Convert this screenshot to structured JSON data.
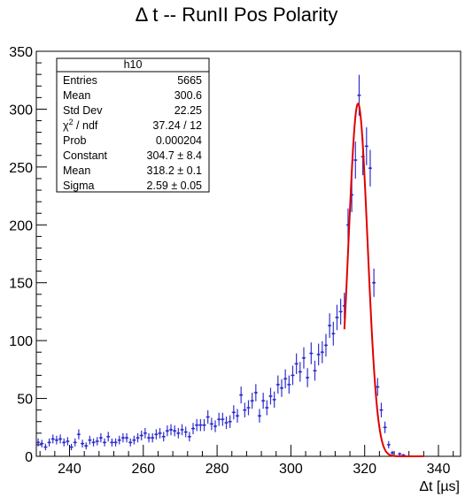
{
  "chart_data": {
    "type": "histogram",
    "title": "Δ t -- RunII Pos Polarity",
    "xlabel": "Δt [µs]",
    "ylabel": "",
    "xlim": [
      231,
      346
    ],
    "ylim": [
      0,
      350
    ],
    "x_ticks": [
      240,
      260,
      280,
      300,
      320,
      340
    ],
    "y_ticks": [
      0,
      50,
      100,
      150,
      200,
      250,
      300,
      350
    ],
    "grid": false,
    "legend": "none",
    "colors": {
      "points": "#3030d0",
      "fit": "#e00000",
      "axis": "#000000"
    },
    "bin_width": 1,
    "series": [
      {
        "kind": "points-with-errors",
        "x": [
          231.5,
          232.5,
          233.5,
          234.5,
          235.5,
          236.5,
          237.5,
          238.5,
          239.5,
          240.5,
          241.5,
          242.5,
          243.5,
          244.5,
          245.5,
          246.5,
          247.5,
          248.5,
          249.5,
          250.5,
          251.5,
          252.5,
          253.5,
          254.5,
          255.5,
          256.5,
          257.5,
          258.5,
          259.5,
          260.5,
          261.5,
          262.5,
          263.5,
          264.5,
          265.5,
          266.5,
          267.5,
          268.5,
          269.5,
          270.5,
          271.5,
          272.5,
          273.5,
          274.5,
          275.5,
          276.5,
          277.5,
          278.5,
          279.5,
          280.5,
          281.5,
          282.5,
          283.5,
          284.5,
          285.5,
          286.5,
          287.5,
          288.5,
          289.5,
          290.5,
          291.5,
          292.5,
          293.5,
          294.5,
          295.5,
          296.5,
          297.5,
          298.5,
          299.5,
          300.5,
          301.5,
          302.5,
          303.5,
          304.5,
          305.5,
          306.5,
          307.5,
          308.5,
          309.5,
          310.5,
          311.5,
          312.5,
          313.5,
          314.5,
          315.5,
          316.5,
          317.5,
          318.5,
          319.5,
          320.5,
          321.5,
          322.5,
          323.5,
          324.5,
          325.5,
          326.5,
          327.5,
          328.5,
          329.5,
          330.5
        ],
        "y": [
          12,
          11,
          8,
          12,
          15,
          14,
          15,
          12,
          13,
          8,
          12,
          19,
          11,
          9,
          14,
          12,
          13,
          16,
          12,
          17,
          12,
          12,
          14,
          16,
          16,
          12,
          14,
          16,
          18,
          20,
          16,
          16,
          19,
          20,
          17,
          22,
          23,
          22,
          20,
          23,
          21,
          17,
          24,
          27,
          27,
          27,
          34,
          28,
          26,
          32,
          32,
          29,
          30,
          38,
          35,
          53,
          40,
          42,
          48,
          55,
          35,
          48,
          42,
          52,
          49,
          62,
          59,
          67,
          62,
          70,
          80,
          73,
          85,
          68,
          89,
          74,
          88,
          90,
          96,
          113,
          106,
          120,
          125,
          130,
          200,
          226,
          256,
          312,
          259,
          268,
          249,
          150,
          60,
          40,
          25,
          10,
          3,
          0,
          2,
          1
        ]
      },
      {
        "kind": "gaussian-fit",
        "constant": 304.7,
        "mean": 318.2,
        "sigma": 2.59,
        "x_range": [
          314.5,
          336
        ]
      }
    ]
  },
  "stats_box": {
    "name": "h10",
    "rows": [
      {
        "label": "Entries",
        "value": "5665"
      },
      {
        "label": "Mean",
        "value": "300.6"
      },
      {
        "label": "Std Dev",
        "value": "22.25"
      },
      {
        "label": "χ",
        "sup": "2",
        "label_rest": " / ndf",
        "value": "37.24 / 12"
      },
      {
        "label": "Prob",
        "value": "0.000204"
      },
      {
        "label": "Constant",
        "value": "304.7 ± 8.4"
      },
      {
        "label": "Mean",
        "value": "318.2 ± 0.1"
      },
      {
        "label": "Sigma",
        "value": "2.59 ± 0.05"
      }
    ]
  }
}
